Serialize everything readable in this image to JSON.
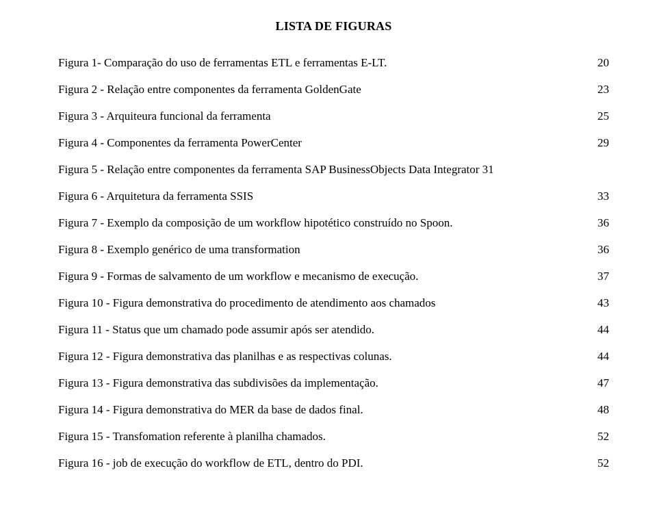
{
  "heading": "LISTA DE FIGURAS",
  "entries": [
    {
      "label": "Figura 1- Comparação do uso de ferramentas ETL e ferramentas E-LT.",
      "page": "20"
    },
    {
      "label": "Figura 2 - Relação entre componentes da ferramenta GoldenGate",
      "page": "23"
    },
    {
      "label": "Figura 3 - Arquiteura funcional da ferramenta",
      "page": "25"
    },
    {
      "label": "Figura 4 - Componentes da ferramenta PowerCenter",
      "page": "29"
    },
    {
      "label": "Figura 5 - Relação entre  componentes da ferramenta SAP BusinessObjects Data Integrator 31",
      "page": "",
      "nodots": true
    },
    {
      "label": "Figura 6 - Arquitetura da ferramenta SSIS",
      "page": "33"
    },
    {
      "label": "Figura 7 - Exemplo da composição de um workflow hipotético construído no Spoon.",
      "page": "36"
    },
    {
      "label": "Figura 8 - Exemplo genérico de uma transformation",
      "page": "36"
    },
    {
      "label": "Figura 9 - Formas de salvamento de um workflow e mecanismo de execução.",
      "page": "37"
    },
    {
      "label": "Figura 10 - Figura demonstrativa do procedimento de atendimento aos chamados",
      "page": "43"
    },
    {
      "label": "Figura 11 - Status que um chamado pode assumir após ser atendido.",
      "page": "44"
    },
    {
      "label": "Figura 12 - Figura demonstrativa das planilhas e as respectivas colunas.",
      "page": "44"
    },
    {
      "label": "Figura 13 - Figura demonstrativa das subdivisões da implementação.",
      "page": "47"
    },
    {
      "label": "Figura 14 - Figura demonstrativa do MER da base de dados final.",
      "page": "48"
    },
    {
      "label": "Figura 15 - Transfomation referente à planilha chamados.",
      "page": "52"
    },
    {
      "label": "Figura 16 - job de execução do workflow de ETL, dentro do PDI.",
      "page": "52"
    }
  ]
}
